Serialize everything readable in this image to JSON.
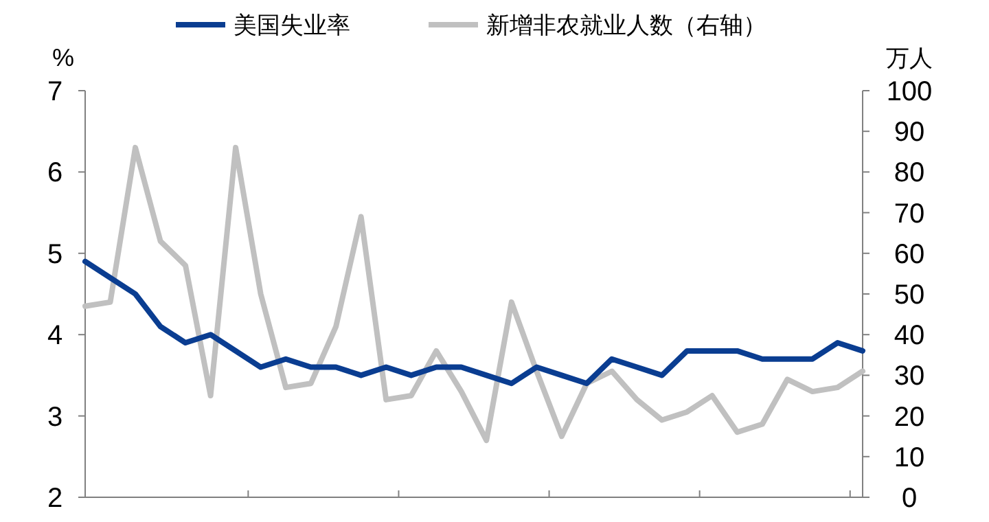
{
  "chart_data": {
    "type": "line",
    "ylabel": "%",
    "y2label": "万人",
    "legend": "top",
    "grid": false,
    "categories": [
      null,
      null,
      null,
      null,
      null,
      null,
      null,
      null,
      null,
      null,
      null,
      null,
      null,
      null,
      null,
      null,
      null,
      null,
      null,
      null,
      null,
      null,
      null,
      null,
      null,
      null,
      null,
      null,
      null,
      null,
      null,
      null
    ],
    "ylim": [
      2,
      7
    ],
    "yticks": [
      2,
      3,
      4,
      5,
      6,
      7
    ],
    "y2lim": [
      0,
      100
    ],
    "y2ticks": [
      0,
      10,
      20,
      30,
      40,
      50,
      60,
      70,
      80,
      90,
      100
    ],
    "series": [
      {
        "name": "美国失业率",
        "color": "#0a3d91",
        "values": [
          4.9,
          4.7,
          4.5,
          4.1,
          3.9,
          4.0,
          3.8,
          3.6,
          3.7,
          3.6,
          3.6,
          3.5,
          3.6,
          3.5,
          3.6,
          3.6,
          3.5,
          3.4,
          3.6,
          3.5,
          3.4,
          3.7,
          3.6,
          3.5,
          3.8,
          3.8,
          3.8,
          3.7,
          3.7,
          3.7,
          3.9,
          3.8
        ]
      },
      {
        "name": "新增非农就业人数（右轴）",
        "color": "#c0c0c0",
        "axis": "y2",
        "values": [
          47,
          48,
          86,
          63,
          57,
          25,
          86,
          50,
          27,
          28,
          42,
          69,
          24,
          25,
          36,
          26,
          14,
          48,
          31,
          15,
          28,
          31,
          24,
          19,
          21,
          25,
          16,
          18,
          29,
          26,
          27,
          31
        ]
      }
    ]
  }
}
